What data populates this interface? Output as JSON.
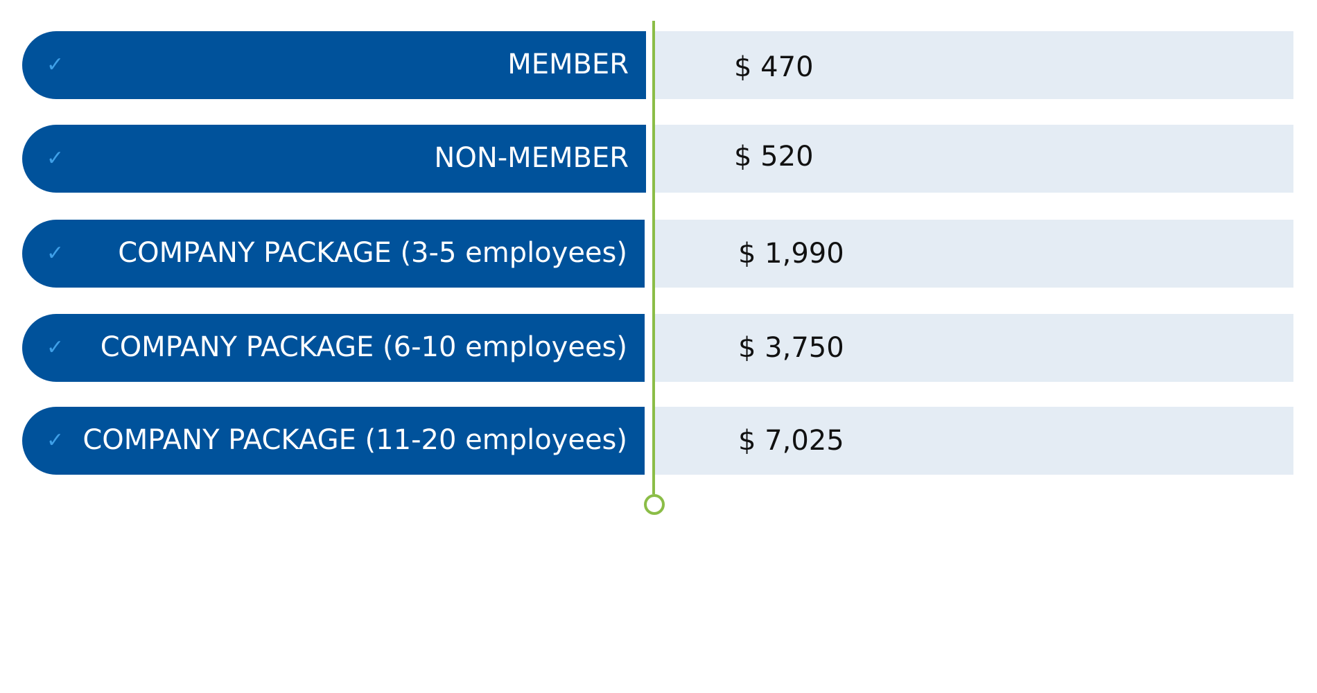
{
  "colors": {
    "pill": "#00529b",
    "check": "#3fa0e8",
    "price_bg": "#e4ecf4",
    "divider": "#8bbd47"
  },
  "rows": [
    {
      "label": "MEMBER",
      "price": "$ 470",
      "icon": "check-icon"
    },
    {
      "label": "NON-MEMBER",
      "price": "$ 520",
      "icon": "check-icon"
    },
    {
      "label": "COMPANY PACKAGE (3-5 employees)",
      "price": "$ 1,990",
      "icon": "check-icon"
    },
    {
      "label": "COMPANY PACKAGE (6-10 employees)",
      "price": "$ 3,750",
      "icon": "check-icon"
    },
    {
      "label": "COMPANY PACKAGE (11-20 employees)",
      "price": "$ 7,025",
      "icon": "check-icon"
    }
  ]
}
